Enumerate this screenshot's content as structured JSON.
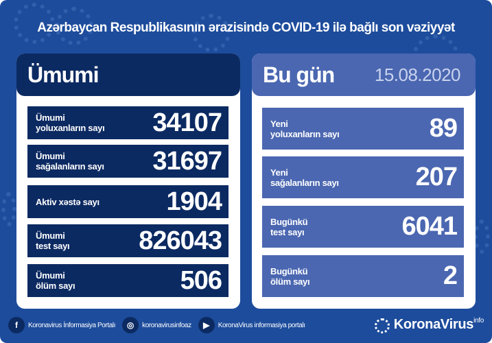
{
  "title": "Azərbaycan Respublikasının ərazisində COVID-19 ilə bağlı son vəziyyət",
  "total": {
    "heading": "Ümumi",
    "rows": [
      {
        "label": "Ümumi\nyoluxanların sayı",
        "value": "34107"
      },
      {
        "label": "Ümumi\nsağalanların sayı",
        "value": "31697"
      },
      {
        "label": "Aktiv xəstə sayı",
        "value": "1904"
      },
      {
        "label": "Ümumi\ntest sayı",
        "value": "826043"
      },
      {
        "label": "Ümumi\nölüm sayı",
        "value": "506"
      }
    ]
  },
  "today": {
    "heading": "Bu gün",
    "date": "15.08.2020",
    "rows": [
      {
        "label": "Yeni\nyoluxanların sayı",
        "value": "89"
      },
      {
        "label": "Yeni\nsağalanların sayı",
        "value": "207"
      },
      {
        "label": "Bugünkü\ntest sayı",
        "value": "6041"
      },
      {
        "label": "Bugünkü\nölüm sayı",
        "value": "2"
      }
    ]
  },
  "footer": {
    "facebook": "Koronavirus İnformasiya Portalı",
    "instagram": "koronavirusinfoaz",
    "youtube": "KoronaVirus informasiya portalı",
    "logo": "KoronaVirus",
    "logo_sup": "info"
  },
  "colors": {
    "background": "#1d4c9c",
    "dark": "#0c2a62",
    "light": "#4b67b1"
  }
}
